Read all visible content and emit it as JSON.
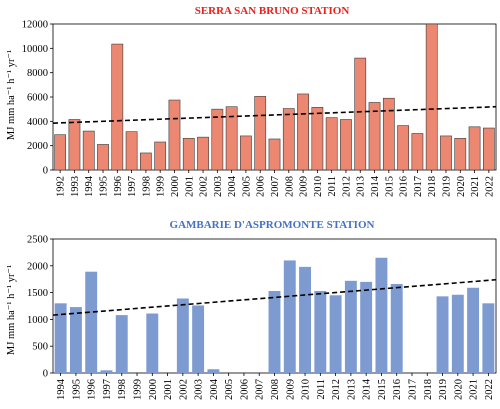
{
  "chart_data": [
    {
      "type": "bar",
      "title": "SERRA SAN BRUNO STATION",
      "title_color": "#e8221b",
      "bar_color": "#ec8872",
      "bar_edge_color": "#3a3a3a",
      "ylabel": "MJ mm ha⁻¹ h⁻¹ yr⁻¹",
      "ylim": [
        0,
        12000
      ],
      "yticks": [
        "0",
        "2000",
        "4000",
        "6000",
        "8000",
        "10000",
        "12000"
      ],
      "trendline": {
        "style": "dashed",
        "start": 3850,
        "end": 5200
      },
      "categories": [
        "1992",
        "1993",
        "1994",
        "1995",
        "1996",
        "1997",
        "1998",
        "1999",
        "2000",
        "2001",
        "2002",
        "2003",
        "2004",
        "2005",
        "2006",
        "2007",
        "2008",
        "2009",
        "2010",
        "2011",
        "2012",
        "2013",
        "2014",
        "2015",
        "2016",
        "2017",
        "2018",
        "2019",
        "2020",
        "2021",
        "2022"
      ],
      "values": [
        2900,
        4150,
        3200,
        2100,
        10350,
        3150,
        1400,
        2300,
        5750,
        2600,
        2700,
        5000,
        5200,
        2800,
        6050,
        2550,
        5050,
        6250,
        5150,
        4300,
        4150,
        9200,
        5550,
        5900,
        3650,
        3000,
        12000,
        2800,
        2600,
        3550,
        3450
      ]
    },
    {
      "type": "bar",
      "title": "GAMBARIE D'ASPROMONTE STATION",
      "title_color": "#4472c4",
      "bar_color": "#7d9bd1",
      "bar_edge_color": "none",
      "ylabel": "MJ mm ha⁻¹ h⁻¹ yr⁻¹",
      "ylim": [
        0,
        2500
      ],
      "yticks": [
        "0",
        "500",
        "1000",
        "1500",
        "2000",
        "2500"
      ],
      "trendline": {
        "style": "dashed",
        "start": 1080,
        "end": 1740
      },
      "categories": [
        "1994",
        "1995",
        "1996",
        "1997",
        "1998",
        "1999",
        "2000",
        "2001",
        "2002",
        "2003",
        "2004",
        "2005",
        "2006",
        "2007",
        "2008",
        "2009",
        "2010",
        "2011",
        "2012",
        "2013",
        "2014",
        "2015",
        "2016",
        "2017",
        "2018",
        "2019",
        "2020",
        "2021",
        "2022"
      ],
      "values": [
        1300,
        1230,
        1890,
        50,
        1080,
        0,
        1110,
        0,
        1390,
        1260,
        70,
        0,
        0,
        0,
        1530,
        2100,
        1980,
        1530,
        1450,
        1720,
        1700,
        2150,
        1660,
        0,
        0,
        1430,
        1460,
        1590,
        1300
      ]
    }
  ]
}
